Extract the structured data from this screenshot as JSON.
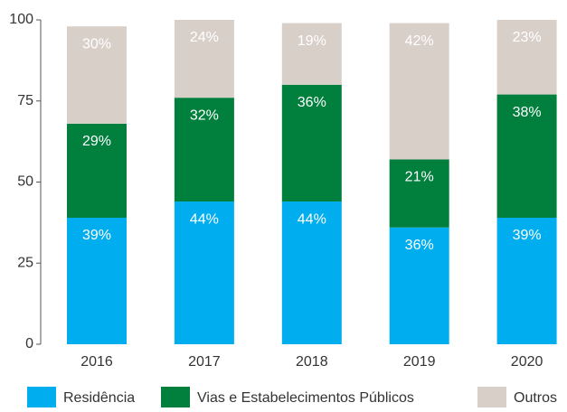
{
  "chart_data": {
    "type": "stacked_bar",
    "categories": [
      "2016",
      "2017",
      "2018",
      "2019",
      "2020"
    ],
    "series": [
      {
        "name": "Residência",
        "color": "#00aeef",
        "values": [
          39,
          44,
          44,
          36,
          39
        ],
        "value_labels": [
          "39%",
          "44%",
          "44%",
          "36%",
          "39%"
        ]
      },
      {
        "name": "Vias e Estabelecimentos Públicos",
        "color": "#007f3d",
        "values": [
          29,
          32,
          36,
          21,
          38
        ],
        "value_labels": [
          "29%",
          "32%",
          "36%",
          "21%",
          "38%"
        ]
      },
      {
        "name": "Outros",
        "color": "#d9cfc9",
        "values": [
          30,
          24,
          19,
          42,
          23
        ],
        "value_labels": [
          "30%",
          "24%",
          "19%",
          "42%",
          "23%"
        ]
      }
    ],
    "ylim": [
      0,
      100
    ],
    "yticks": [
      0,
      25,
      50,
      75,
      100
    ],
    "legend": "bottom"
  }
}
